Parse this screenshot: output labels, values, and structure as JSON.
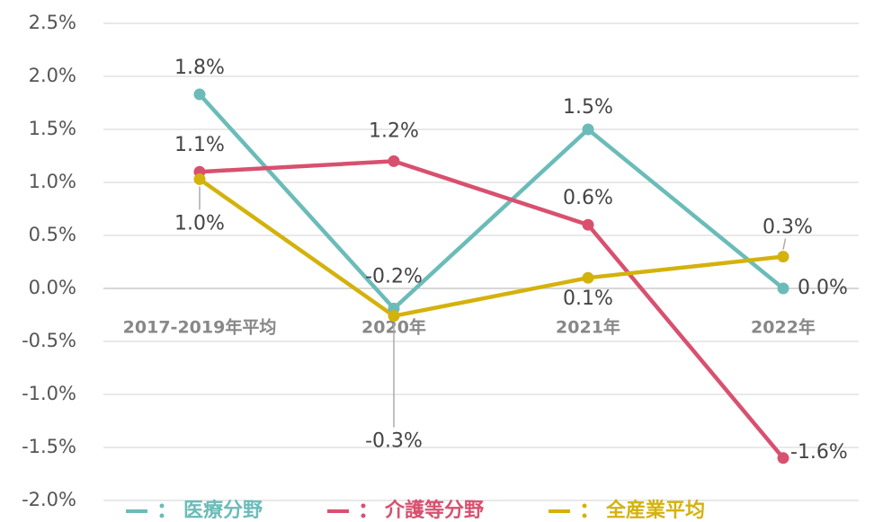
{
  "chart_data": {
    "type": "line",
    "categories": [
      "2017-2019年平均",
      "2020年",
      "2021年",
      "2022年"
    ],
    "series": [
      {
        "name": "医療分野",
        "color": "#6bbcb8",
        "values": [
          1.83,
          -0.19,
          1.5,
          0.0
        ],
        "value_labels": [
          "1.8%",
          "-0.2%",
          "1.5%",
          "0.0%"
        ]
      },
      {
        "name": "介護等分野",
        "color": "#d9506f",
        "values": [
          1.1,
          1.2,
          0.6,
          -1.6
        ],
        "value_labels": [
          "1.1%",
          "1.2%",
          "0.6%",
          "-1.6%"
        ]
      },
      {
        "name": "全産業平均",
        "color": "#d4b20c",
        "values": [
          1.03,
          -0.26,
          0.1,
          0.3
        ],
        "value_labels": [
          "1.0%",
          "-0.3%",
          "0.1%",
          "0.3%"
        ]
      }
    ],
    "ylim": [
      -2.0,
      2.5
    ],
    "yticks": [
      {
        "value": -2.0,
        "label": "-2.0%"
      },
      {
        "value": -1.5,
        "label": "-1.5%"
      },
      {
        "value": -1.0,
        "label": "-1.0%"
      },
      {
        "value": -0.5,
        "label": "-0.5%"
      },
      {
        "value": 0.0,
        "label": "0.0%"
      },
      {
        "value": 0.5,
        "label": "0.5%"
      },
      {
        "value": 1.0,
        "label": "1.0%"
      },
      {
        "value": 1.5,
        "label": "1.5%"
      },
      {
        "value": 2.0,
        "label": "2.0%"
      },
      {
        "value": 2.5,
        "label": "2.5%"
      }
    ],
    "grid": true,
    "legend": "bottom"
  }
}
